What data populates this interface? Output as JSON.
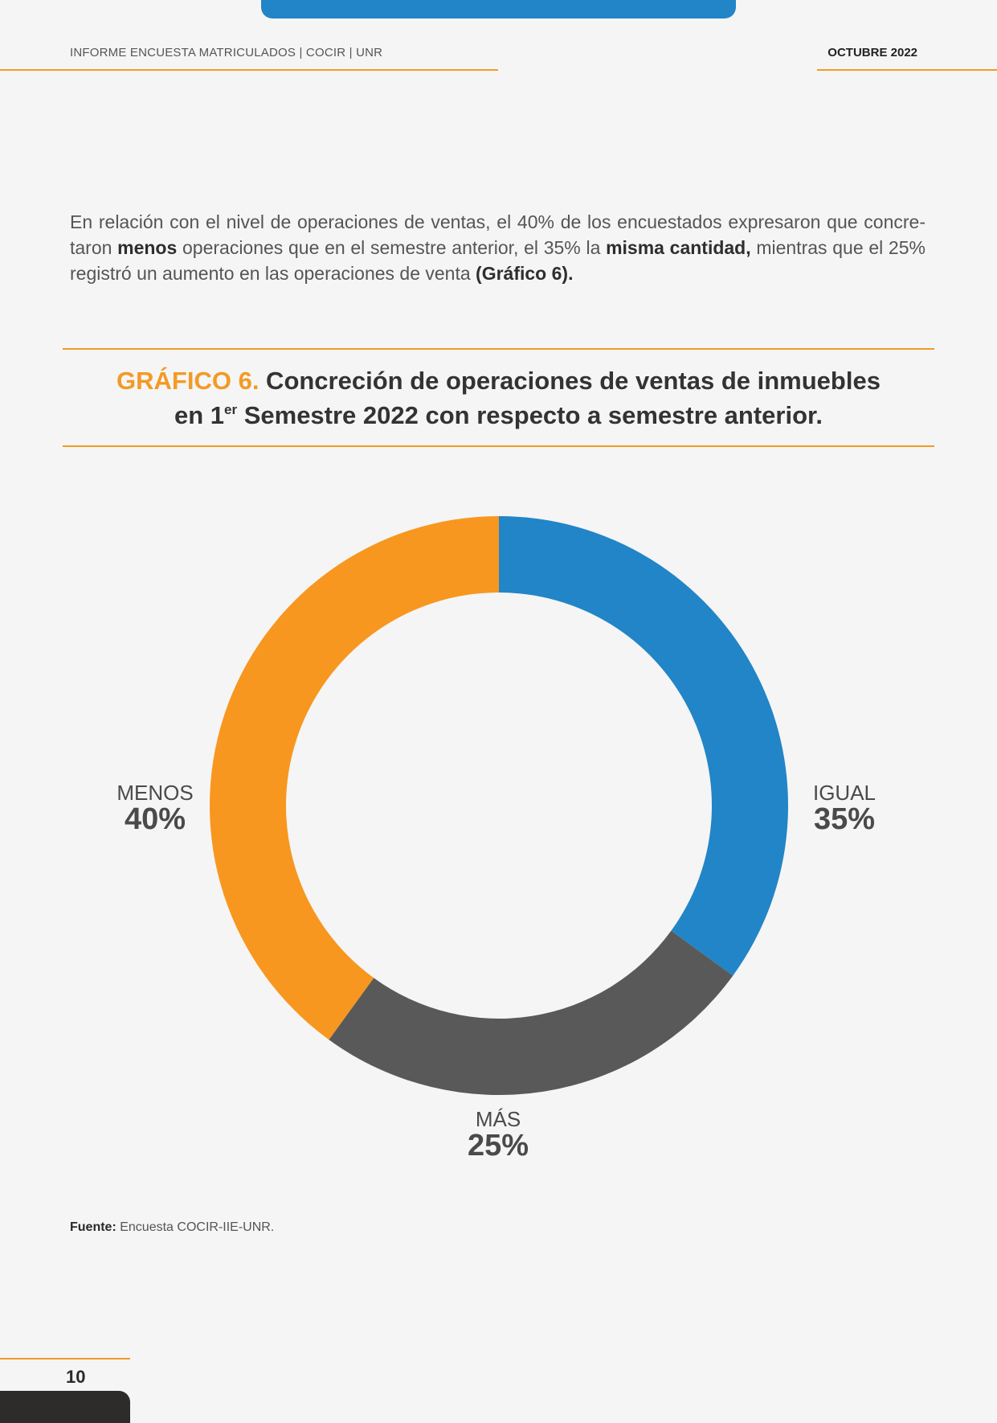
{
  "header": {
    "left": "INFORME ENCUESTA MATRICULADOS | COCIR | UNR",
    "right": "OCTUBRE 2022"
  },
  "intro": {
    "part1": "En relación con el nivel de operaciones de ventas, el 40% de los encuestados expresaron que concre­taron ",
    "bold1": "menos",
    "part2": " operaciones que en el semestre anterior, el 35% la ",
    "bold2": "misma cantidad,",
    "part3": " mientras que el 25% registró un aumento en las operaciones de venta ",
    "bold3": "(Gráfico 6)."
  },
  "chart_title": {
    "number": "GRÁFICO 6.",
    "line1": " Concreción de operaciones de ventas de inmuebles",
    "line2_a": "en 1",
    "line2_sup": "er",
    "line2_b": " Semestre 2022 con respecto a semestre anterior."
  },
  "chart_data": {
    "type": "pie",
    "title": "GRÁFICO 6. Concreción de operaciones de ventas de inmuebles en 1er Semestre 2022 con respecto a semestre anterior.",
    "categories": [
      "IGUAL",
      "MÁS",
      "MENOS"
    ],
    "values": [
      35,
      25,
      40
    ],
    "value_labels": [
      "35%",
      "25%",
      "40%"
    ],
    "colors": [
      "#2285c7",
      "#595959",
      "#f7971f"
    ],
    "donut": true,
    "start": "top, clockwise"
  },
  "source": {
    "label": "Fuente:",
    "text": " Encuesta COCIR-IIE-UNR."
  },
  "footer": {
    "page_number": "10"
  }
}
